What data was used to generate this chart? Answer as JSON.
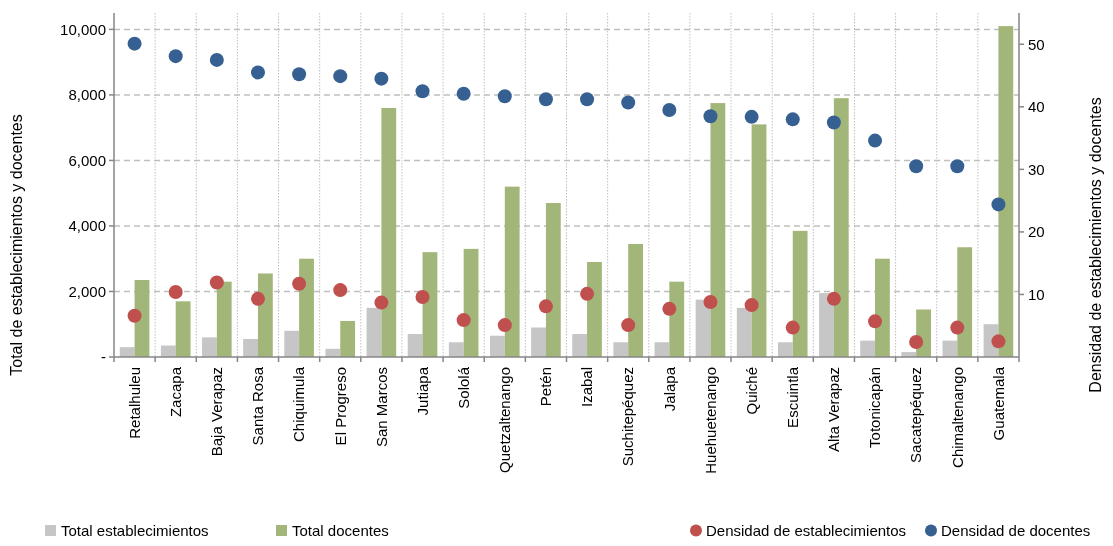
{
  "chart_data": {
    "type": "bar",
    "ylabel": "Total de establecimientos y docentes",
    "y2label": "Densidad de establecimientos y docentes",
    "categories": [
      "Retalhuleu",
      "Zacapa",
      "Baja Verapaz",
      "Santa Rosa",
      "Chiquimula",
      "El Progreso",
      "San Marcos",
      "Jutiapa",
      "Sololá",
      "Quetzaltenango",
      "Petén",
      "Izabal",
      "Suchitepéquez",
      "Jalapa",
      "Huehuetenango",
      "Quiché",
      "Escuintla",
      "Alta Verapaz",
      "Totonicapán",
      "Sacatepéquez",
      "Chimaltenango",
      "Guatemala"
    ],
    "series": [
      {
        "name": "Total establecimientos",
        "color": "#c6c6c6",
        "values": [
          300,
          350,
          600,
          550,
          800,
          250,
          1500,
          700,
          450,
          650,
          900,
          700,
          450,
          450,
          1750,
          1500,
          450,
          1950,
          500,
          150,
          500,
          1000
        ]
      },
      {
        "name": "Total docentes",
        "color": "#a2b679",
        "values": [
          2350,
          1700,
          2300,
          2550,
          3000,
          1100,
          7600,
          3200,
          3300,
          5200,
          4700,
          2900,
          3450,
          2300,
          7750,
          7100,
          3850,
          7900,
          3000,
          1450,
          3350,
          10100
        ]
      },
      {
        "name": "Densidad de establecimientos",
        "type": "scatter",
        "axis": "y2",
        "color": "#c0504d",
        "values": [
          6.6,
          10.4,
          11.9,
          9.3,
          11.7,
          10.7,
          8.7,
          9.6,
          5.9,
          5.1,
          8.1,
          10.1,
          5.1,
          7.7,
          8.8,
          8.3,
          4.7,
          9.3,
          5.7,
          2.4,
          4.7,
          2.5
        ]
      },
      {
        "name": "Densidad de docentes",
        "type": "scatter",
        "axis": "y2",
        "color": "#366092",
        "values": [
          50.1,
          48.1,
          47.5,
          45.5,
          45.2,
          44.9,
          44.5,
          42.5,
          42.1,
          41.7,
          41.2,
          41.2,
          40.7,
          39.5,
          38.5,
          38.4,
          38.0,
          37.5,
          34.6,
          30.5,
          30.5,
          24.4
        ]
      }
    ],
    "ylim": [
      0,
      10500
    ],
    "yticks": [
      {
        "value": 0,
        "label": "-"
      },
      {
        "value": 2000,
        "label": "2,000"
      },
      {
        "value": 4000,
        "label": "4,000"
      },
      {
        "value": 6000,
        "label": "6,000"
      },
      {
        "value": 8000,
        "label": "8,000"
      },
      {
        "value": 10000,
        "label": "10,000"
      }
    ],
    "y2lim": [
      0,
      55
    ],
    "y2ticks": [
      10,
      20,
      30,
      40,
      50
    ],
    "grid": true,
    "legend": "bottom",
    "marker": "circle"
  }
}
